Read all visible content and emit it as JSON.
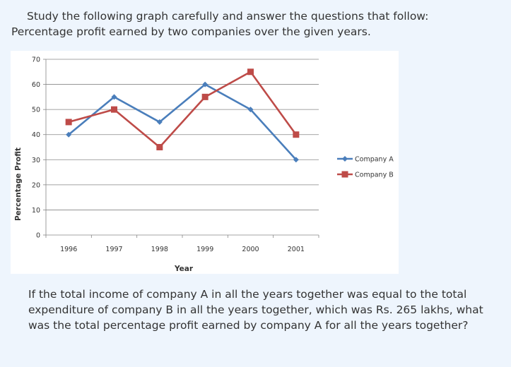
{
  "intro": {
    "line1": "Study the following graph carefully and answer the questions that follow:",
    "line2": "Percentage profit earned by two companies over the given years."
  },
  "question": {
    "text": "If the total income of company A in all the years together was equal to the total expenditure of company B in all the years together, which was Rs. 265 lakhs, what was the total percentage profit earned by company A for all the years together?"
  },
  "colors": {
    "series_a": "#4a7ebb",
    "series_b": "#be4b48",
    "grid": "#868686"
  },
  "chart_data": {
    "type": "line",
    "title": "",
    "xlabel": "Year",
    "ylabel": "Percentage Profit",
    "categories": [
      "1996",
      "1997",
      "1998",
      "1999",
      "2000",
      "2001"
    ],
    "ylim": [
      0,
      70
    ],
    "yticks": [
      "0",
      "10",
      "20",
      "30",
      "40",
      "50",
      "60",
      "70"
    ],
    "grid": true,
    "legend": "right",
    "series": [
      {
        "name": "Company A",
        "values": [
          40,
          55,
          45,
          60,
          50,
          30
        ],
        "marker": "diamond"
      },
      {
        "name": "Company B",
        "values": [
          45,
          50,
          35,
          55,
          65,
          40
        ],
        "marker": "square"
      }
    ]
  }
}
